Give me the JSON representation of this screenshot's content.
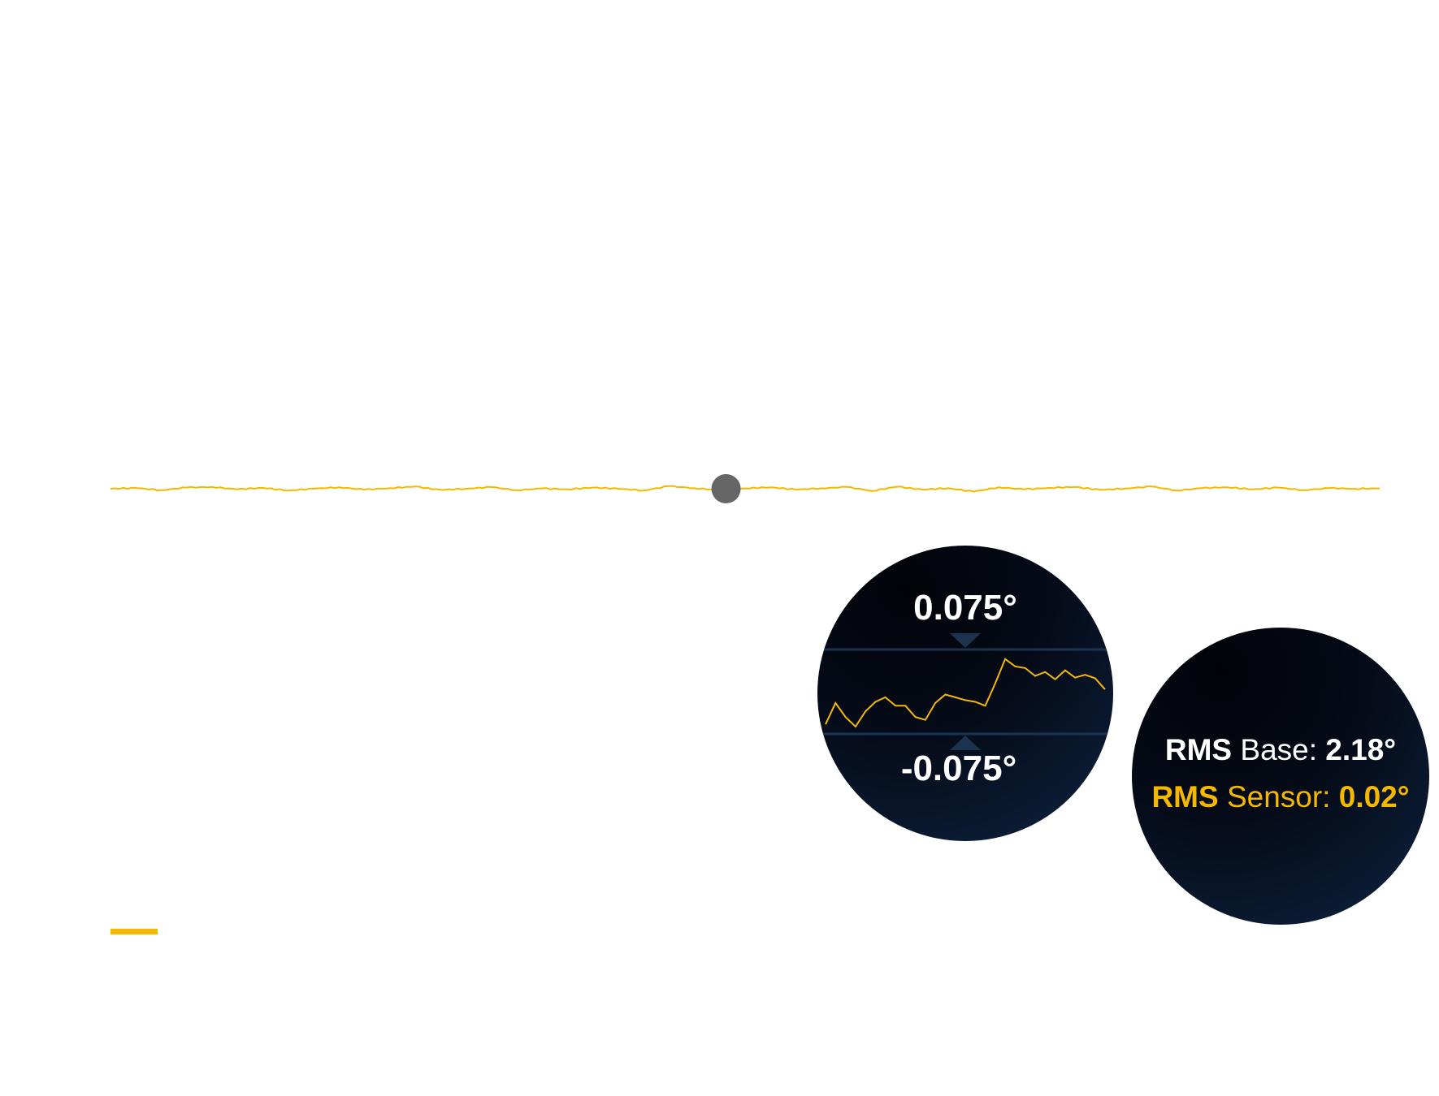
{
  "colors": {
    "series": "#f5b800",
    "marker": "#666666",
    "circle_bg": "#050b18",
    "limit_line": "#1c3350",
    "text_primary": "#ffffff"
  },
  "zoom": {
    "upper_limit_label": "0.075°",
    "lower_limit_label": "-0.075°"
  },
  "rms": {
    "base_key": "RMS",
    "base_label": " Base: ",
    "base_value": "2.18°",
    "sensor_key": "RMS",
    "sensor_label": " Sensor: ",
    "sensor_value": "0.02°"
  },
  "chart_data": [
    {
      "type": "line",
      "title": "",
      "xlabel": "",
      "ylabel": "",
      "grid": false,
      "x": [
        0,
        0.02,
        0.04,
        0.06,
        0.08,
        0.1,
        0.12,
        0.14,
        0.16,
        0.18,
        0.2,
        0.22,
        0.24,
        0.26,
        0.28,
        0.3,
        0.32,
        0.34,
        0.36,
        0.38,
        0.4,
        0.42,
        0.44,
        0.46,
        0.48,
        0.5,
        0.52,
        0.54,
        0.56,
        0.58,
        0.6,
        0.62,
        0.64,
        0.66,
        0.68,
        0.7,
        0.72,
        0.74,
        0.76,
        0.78,
        0.8,
        0.82,
        0.84,
        0.86,
        0.88,
        0.9,
        0.92,
        0.94,
        0.96,
        0.98,
        1.0
      ],
      "series": [
        {
          "values": [
            0.0,
            0.005,
            -0.01,
            0.008,
            0.012,
            -0.004,
            0.006,
            -0.012,
            0.0,
            0.01,
            -0.006,
            0.004,
            0.015,
            -0.008,
            0.0,
            0.011,
            -0.01,
            0.002,
            -0.004,
            0.008,
            0.0,
            -0.012,
            0.018,
            0.004,
            -0.01,
            0.002,
            0.01,
            -0.006,
            0.003,
            0.012,
            -0.015,
            0.014,
            -0.006,
            0.004,
            -0.02,
            0.01,
            -0.004,
            0.006,
            0.012,
            -0.008,
            0.002,
            0.015,
            -0.012,
            0.004,
            0.01,
            -0.004,
            0.008,
            -0.01,
            0.004,
            0.0,
            0.002
          ]
        }
      ],
      "marker_x": 0.485
    },
    {
      "type": "line",
      "title": "",
      "ylim": [
        -0.075,
        0.075
      ],
      "y_limit_lines": [
        0.075,
        -0.075
      ],
      "y_limit_labels": [
        "0.075°",
        "-0.075°"
      ],
      "series": [
        {
          "values": [
            -0.058,
            -0.02,
            -0.045,
            -0.062,
            -0.035,
            -0.018,
            -0.01,
            -0.025,
            -0.025,
            -0.045,
            -0.05,
            -0.02,
            -0.005,
            -0.01,
            -0.015,
            -0.018,
            -0.025,
            0.015,
            0.058,
            0.045,
            0.042,
            0.028,
            0.035,
            0.022,
            0.038,
            0.025,
            0.03,
            0.024,
            0.004
          ]
        }
      ]
    }
  ]
}
